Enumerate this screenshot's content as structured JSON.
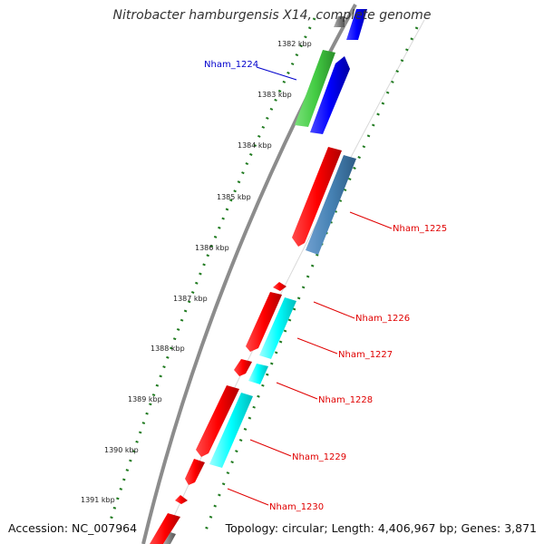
{
  "title": "Nitrobacter hamburgensis X14, complete genome",
  "footer": {
    "accession": "Accession: NC_007964",
    "summary": "Topology: circular; Length: 4,406,967 bp; Genes: 3,871"
  },
  "colors": {
    "backbone": "#8c8c8c",
    "tick_green": "#1f7a1f",
    "label_red": "#e00000",
    "label_blue": "#0000cc",
    "gene_red": "#ff0000",
    "gene_blue": "#0000ff",
    "gene_green": "#44cc44",
    "gene_steel": "#4682b4",
    "gene_cyan": "#00ffff",
    "gene_gray": "#808080"
  },
  "ticks": [
    {
      "label": "1382 kbp"
    },
    {
      "label": "1383 kbp"
    },
    {
      "label": "1384 kbp"
    },
    {
      "label": "1385 kbp"
    },
    {
      "label": "1386 kbp"
    },
    {
      "label": "1387 kbp"
    },
    {
      "label": "1388 kbp"
    },
    {
      "label": "1389 kbp"
    },
    {
      "label": "1390 kbp"
    },
    {
      "label": "1391 kbp"
    }
  ],
  "gene_labels": [
    {
      "text": "Nham_1224",
      "color": "blue"
    },
    {
      "text": "Nham_1225",
      "color": "red"
    },
    {
      "text": "Nham_1226",
      "color": "red"
    },
    {
      "text": "Nham_1227",
      "color": "red"
    },
    {
      "text": "Nham_1228",
      "color": "red"
    },
    {
      "text": "Nham_1229",
      "color": "red"
    },
    {
      "text": "Nham_1230",
      "color": "red"
    }
  ]
}
